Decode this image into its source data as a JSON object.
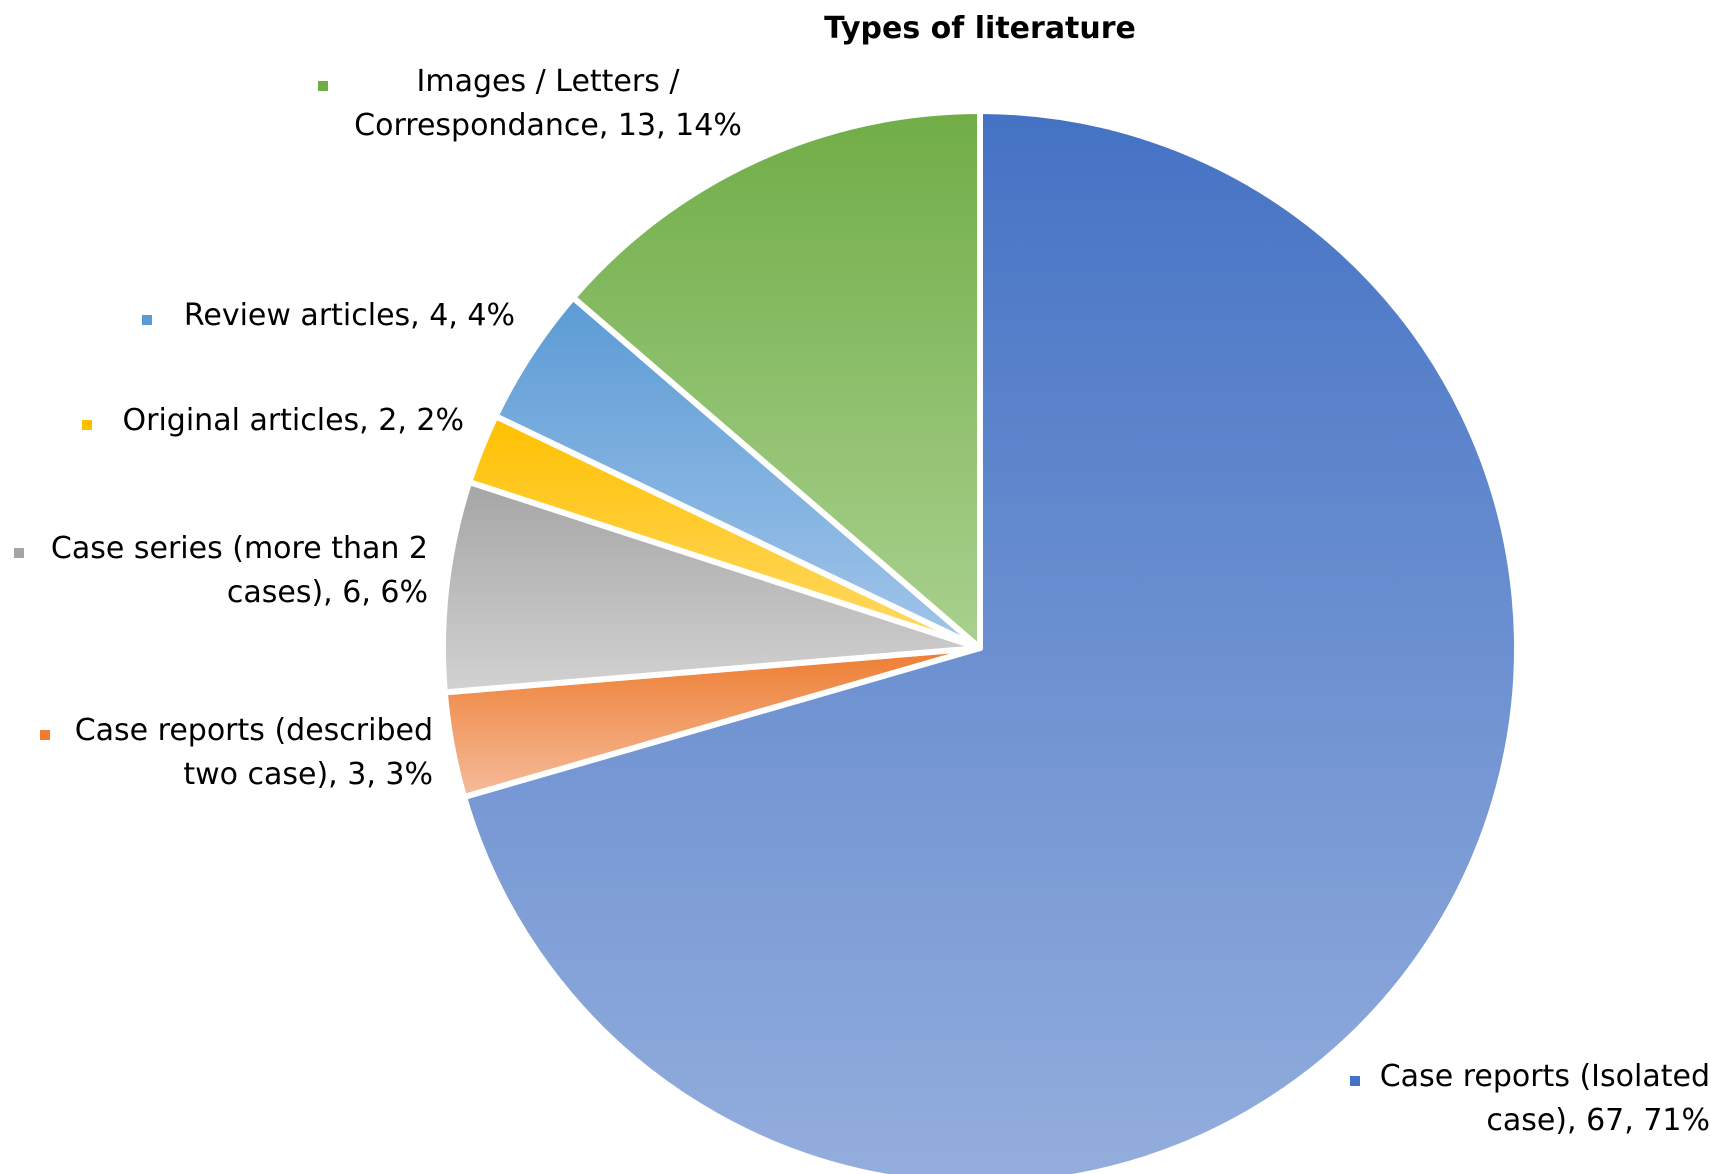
{
  "chart_data": {
    "type": "pie",
    "title": "Types of literature",
    "slices": [
      {
        "name": "Case reports (Isolated case)",
        "value": 67,
        "percent": "71%",
        "label_lines": [
          "Case reports (Isolated",
          "case), 67, 71%"
        ],
        "color_top": "#4472C4",
        "color_bottom": "#94AEDD"
      },
      {
        "name": "Case reports (described two case)",
        "value": 3,
        "percent": "3%",
        "label_lines": [
          "Case reports (described",
          "two case), 3, 3%"
        ],
        "color_top": "#ED7D31",
        "color_bottom": "#F6BB9B"
      },
      {
        "name": "Case series (more than 2 cases)",
        "value": 6,
        "percent": "6%",
        "label_lines": [
          "Case series (more than 2",
          "cases), 6, 6%"
        ],
        "color_top": "#A5A5A5",
        "color_bottom": "#D2D2D2"
      },
      {
        "name": "Original articles",
        "value": 2,
        "percent": "2%",
        "label_lines": [
          "Original articles, 2, 2%"
        ],
        "color_top": "#FFC000",
        "color_bottom": "#FFD966"
      },
      {
        "name": "Review articles",
        "value": 4,
        "percent": "4%",
        "label_lines": [
          "Review articles, 4, 4%"
        ],
        "color_top": "#5B9BD5",
        "color_bottom": "#A2C5EA"
      },
      {
        "name": "Images / Letters / Correspondance",
        "value": 13,
        "percent": "14%",
        "label_lines": [
          "Images / Letters /",
          "Correspondance, 13, 14%"
        ],
        "color_top": "#70AD47",
        "color_bottom": "#A9D18E"
      }
    ]
  }
}
